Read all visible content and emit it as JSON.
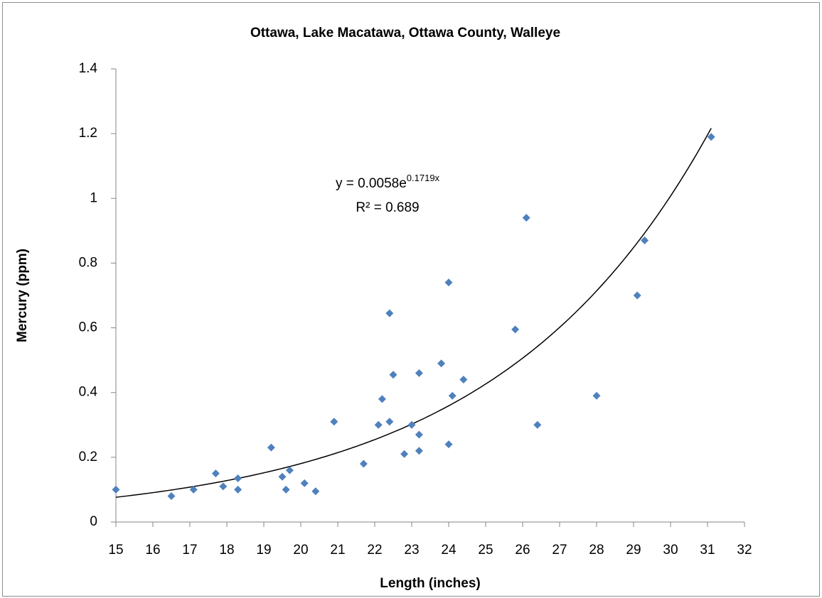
{
  "chart_data": {
    "type": "scatter",
    "title": "Ottawa, Lake Macatawa, Ottawa County, Walleye",
    "xlabel": "Length (inches)",
    "ylabel": "Mercury (ppm)",
    "xlim": [
      15,
      32
    ],
    "ylim": [
      0,
      1.4
    ],
    "xticks": [
      15,
      16,
      17,
      18,
      19,
      20,
      21,
      22,
      23,
      24,
      25,
      26,
      27,
      28,
      29,
      30,
      31,
      32
    ],
    "yticks": [
      0,
      0.2,
      0.4,
      0.6,
      0.8,
      1,
      1.2,
      1.4
    ],
    "series": [
      {
        "name": "Walleye",
        "color": "#4f81bd",
        "x": [
          15,
          16.5,
          17.1,
          17.7,
          17.9,
          18.3,
          18.3,
          19.2,
          19.5,
          19.6,
          19.7,
          20.1,
          20.4,
          20.9,
          21.7,
          22.1,
          22.2,
          22.4,
          22.4,
          22.5,
          22.8,
          23.0,
          23.2,
          23.2,
          23.2,
          23.8,
          24.0,
          24.0,
          24.1,
          24.4,
          25.8,
          26.1,
          26.4,
          28.0,
          29.1,
          29.3,
          31.1
        ],
        "values": [
          0.1,
          0.08,
          0.1,
          0.15,
          0.11,
          0.135,
          0.1,
          0.23,
          0.14,
          0.1,
          0.16,
          0.12,
          0.095,
          0.31,
          0.18,
          0.3,
          0.38,
          0.31,
          0.645,
          0.455,
          0.21,
          0.3,
          0.27,
          0.22,
          0.46,
          0.49,
          0.74,
          0.24,
          0.39,
          0.44,
          0.595,
          0.94,
          0.3,
          0.39,
          0.7,
          0.87,
          1.19
        ]
      }
    ],
    "trendline": {
      "type": "exponential",
      "a": 0.0058,
      "b": 0.1719,
      "color": "#000000",
      "equation": "y = 0.0058e",
      "exponent": "0.1719x",
      "r2_label": "R² = 0.689"
    }
  }
}
